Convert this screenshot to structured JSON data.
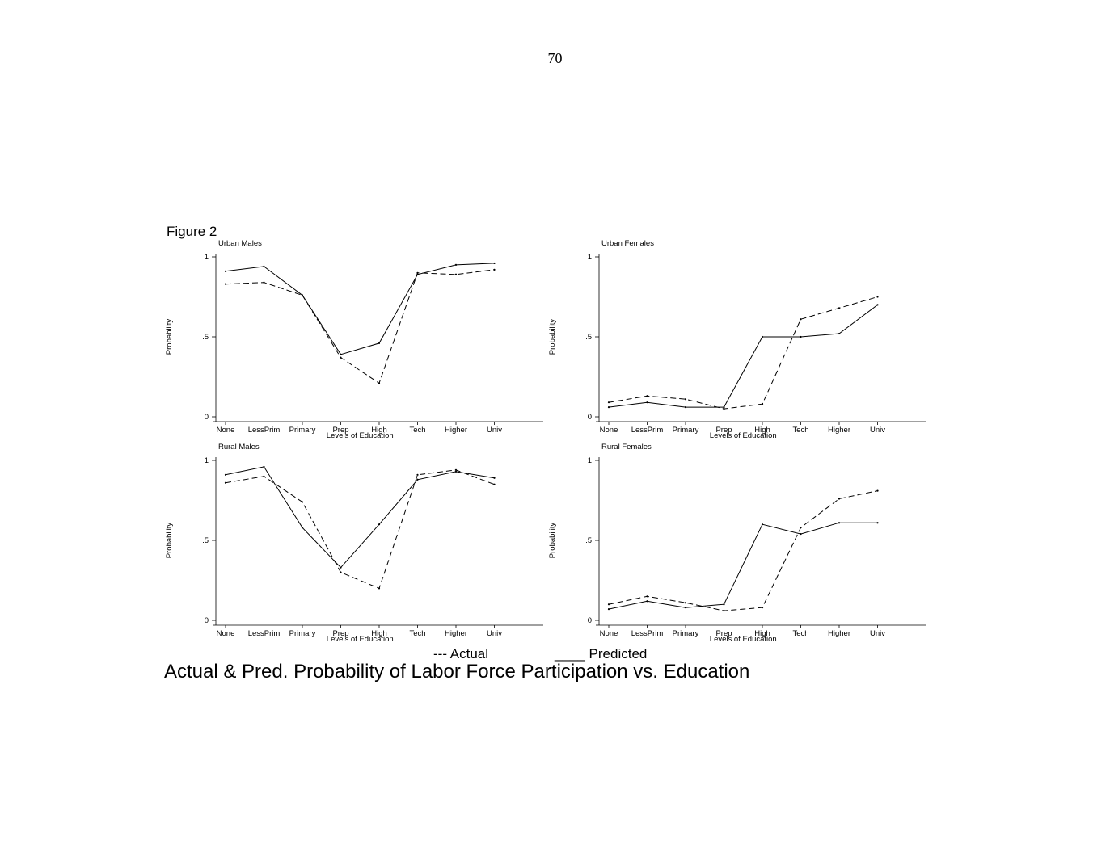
{
  "page": {
    "number": "70",
    "figure_label": "Figure 2"
  },
  "legend": {
    "actual": "--- Actual",
    "predicted": "____ Predicted"
  },
  "caption": "Actual & Pred. Probability of Labor Force Participation vs. Education",
  "chart_data": [
    {
      "type": "line",
      "title": "Urban Males",
      "xlabel": "Levels of Education",
      "ylabel": "Probability",
      "categories": [
        "None",
        "LessPrim",
        "Primary",
        "Prep",
        "High",
        "Tech",
        "Higher",
        "Univ"
      ],
      "ylim": [
        0,
        1
      ],
      "yticks": [
        "0",
        ".5",
        "1"
      ],
      "series": [
        {
          "name": "Actual",
          "dash": true,
          "values": [
            0.83,
            0.84,
            0.76,
            0.37,
            0.21,
            0.9,
            0.89,
            0.92
          ]
        },
        {
          "name": "Predicted",
          "dash": false,
          "values": [
            0.91,
            0.94,
            0.76,
            0.39,
            0.46,
            0.89,
            0.95,
            0.96
          ]
        }
      ]
    },
    {
      "type": "line",
      "title": "Urban Females",
      "xlabel": "Levels of Education",
      "ylabel": "Probability",
      "categories": [
        "None",
        "LessPrim",
        "Primary",
        "Prep",
        "High",
        "Tech",
        "Higher",
        "Univ"
      ],
      "ylim": [
        0,
        1
      ],
      "yticks": [
        "0",
        ".5",
        "1"
      ],
      "series": [
        {
          "name": "Actual",
          "dash": true,
          "values": [
            0.09,
            0.13,
            0.11,
            0.05,
            0.08,
            0.61,
            0.68,
            0.75
          ]
        },
        {
          "name": "Predicted",
          "dash": false,
          "values": [
            0.06,
            0.09,
            0.06,
            0.06,
            0.5,
            0.5,
            0.52,
            0.7
          ]
        }
      ]
    },
    {
      "type": "line",
      "title": "Rural Males",
      "xlabel": "Levels of Education",
      "ylabel": "Probability",
      "categories": [
        "None",
        "LessPrim",
        "Primary",
        "Prep",
        "High",
        "Tech",
        "Higher",
        "Univ"
      ],
      "ylim": [
        0,
        1
      ],
      "yticks": [
        "0",
        ".5",
        "1"
      ],
      "series": [
        {
          "name": "Actual",
          "dash": true,
          "values": [
            0.86,
            0.9,
            0.74,
            0.3,
            0.2,
            0.91,
            0.94,
            0.85
          ]
        },
        {
          "name": "Predicted",
          "dash": false,
          "values": [
            0.91,
            0.96,
            0.58,
            0.33,
            0.6,
            0.88,
            0.93,
            0.89
          ]
        }
      ]
    },
    {
      "type": "line",
      "title": "Rural Females",
      "xlabel": "Levels of Education",
      "ylabel": "Probability",
      "categories": [
        "None",
        "LessPrim",
        "Primary",
        "Prep",
        "High",
        "Tech",
        "Higher",
        "Univ"
      ],
      "ylim": [
        0,
        1
      ],
      "yticks": [
        "0",
        ".5",
        "1"
      ],
      "series": [
        {
          "name": "Actual",
          "dash": true,
          "values": [
            0.1,
            0.15,
            0.11,
            0.06,
            0.08,
            0.58,
            0.76,
            0.81
          ]
        },
        {
          "name": "Predicted",
          "dash": false,
          "values": [
            0.07,
            0.12,
            0.08,
            0.1,
            0.6,
            0.54,
            0.61,
            0.61
          ]
        }
      ]
    }
  ]
}
